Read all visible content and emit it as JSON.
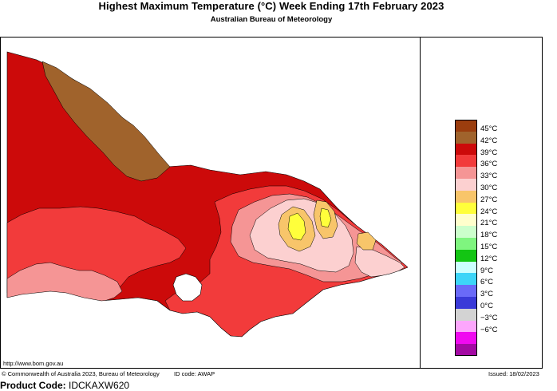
{
  "title": "Highest Maximum Temperature (°C)   Week Ending 17th February 2023",
  "subtitle": "Australian Bureau of Meteorology",
  "url": "http://www.bom.gov.au",
  "footer": {
    "copyright": "© Commonwealth of Australia 2023, Bureau of Meteorology",
    "id_code": "ID code: AWAP",
    "issued": "Issued: 18/02/2023"
  },
  "product": {
    "label": "Product Code:",
    "code": "IDCKAXW620"
  },
  "legend": [
    {
      "label": "45°C",
      "color": "#9b3d0e"
    },
    {
      "label": "42°C",
      "color": "#a0632c"
    },
    {
      "label": "39°C",
      "color": "#cc0a0a"
    },
    {
      "label": "36°C",
      "color": "#f23b3b"
    },
    {
      "label": "33°C",
      "color": "#f59595"
    },
    {
      "label": "30°C",
      "color": "#fcd0d0"
    },
    {
      "label": "27°C",
      "color": "#f8c56a"
    },
    {
      "label": "24°C",
      "color": "#ffff3b"
    },
    {
      "label": "21°C",
      "color": "#ffffcc"
    },
    {
      "label": "18°C",
      "color": "#ccffcc"
    },
    {
      "label": "15°C",
      "color": "#7ff57f"
    },
    {
      "label": "12°C",
      "color": "#13c513"
    },
    {
      "label": "9°C",
      "color": "#ccffff"
    },
    {
      "label": "6°C",
      "color": "#3dd5f8"
    },
    {
      "label": "3°C",
      "color": "#6a6af8"
    },
    {
      "label": "0°C",
      "color": "#3a3ad8"
    },
    {
      "label": "−3°C",
      "color": "#d3d3d3"
    },
    {
      "label": "−6°C",
      "color": "#fca6fc"
    },
    {
      "label": "",
      "color": "#f00af0"
    },
    {
      "label": "",
      "color": "#a30aa3"
    }
  ]
}
